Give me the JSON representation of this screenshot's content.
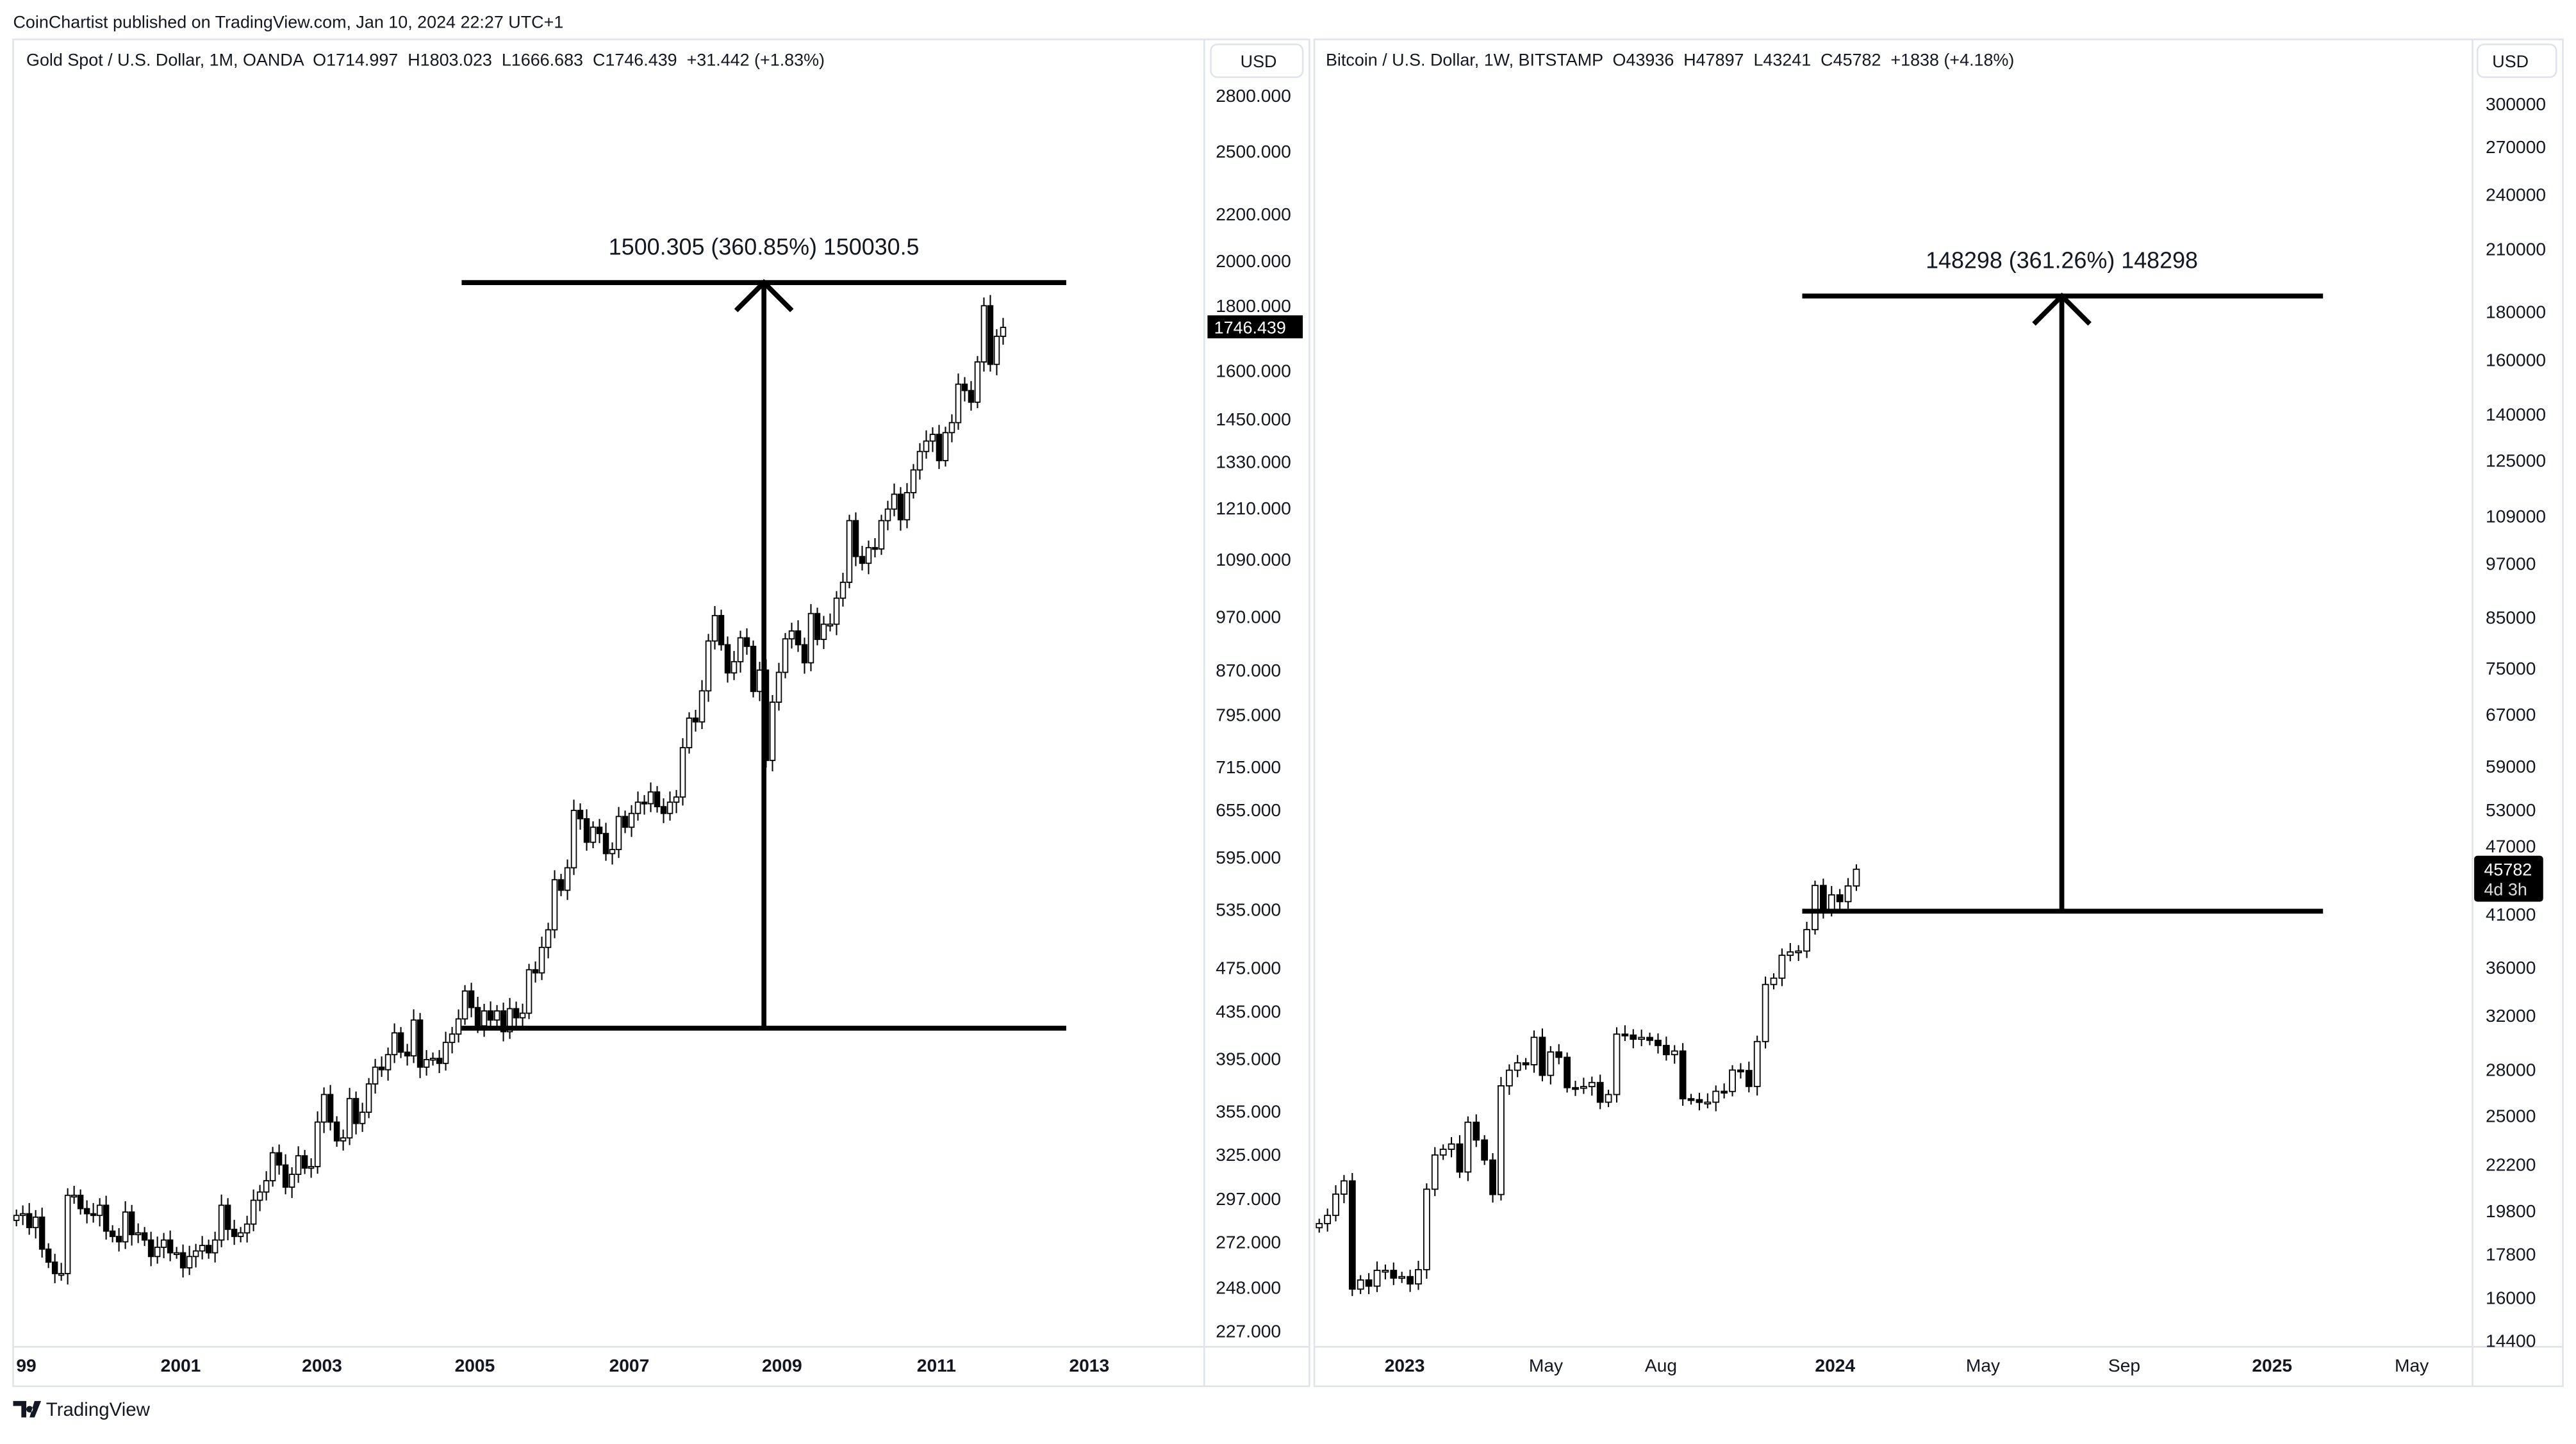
{
  "publisher_line": "CoinChartist published on TradingView.com, Jan 10, 2024 22:27 UTC+1",
  "footer": {
    "logo_text": "TradingView"
  },
  "colors": {
    "up_fill": "#ffffff",
    "down_fill": "#000000",
    "candle_border": "#000000",
    "grid_border": "#e0e3eb",
    "price_tag_bg": "#000000"
  },
  "chart_data": [
    {
      "type": "candlestick",
      "legend": "Gold Spot / U.S. Dollar, 1M, OANDA  O1714.997  H1803.023  L1666.683  C1746.439  +31.442 (+1.83%)",
      "currency_button": "USD",
      "scale": "log",
      "current_price_tag": "1746.439",
      "y_ticks": [
        "2800.000",
        "2500.000",
        "2200.000",
        "2000.000",
        "1800.000",
        "1600.000",
        "1450.000",
        "1330.000",
        "1210.000",
        "1090.000",
        "970.000",
        "870.000",
        "795.000",
        "715.000",
        "655.000",
        "595.000",
        "535.000",
        "475.000",
        "435.000",
        "395.000",
        "355.000",
        "325.000",
        "297.000",
        "272.000",
        "248.000",
        "227.000"
      ],
      "x_ticks": [
        "99",
        "2001",
        "2003",
        "2005",
        "2007",
        "2009",
        "2011",
        "2013"
      ],
      "start": "1999-01",
      "interval": "monthly",
      "closes": [
        287,
        288,
        280,
        286,
        268,
        261,
        255,
        255,
        299,
        299,
        291,
        288,
        287,
        293,
        278,
        275,
        272,
        289,
        276,
        277,
        273,
        264,
        269,
        273,
        266,
        266,
        258,
        264,
        267,
        270,
        266,
        273,
        293,
        279,
        275,
        277,
        282,
        296,
        301,
        308,
        326,
        318,
        304,
        312,
        324,
        316,
        317,
        347,
        367,
        347,
        334,
        336,
        364,
        346,
        354,
        375,
        388,
        386,
        398,
        416,
        400,
        397,
        427,
        388,
        394,
        395,
        391,
        408,
        415,
        428,
        453,
        438,
        422,
        435,
        427,
        435,
        417,
        437,
        429,
        433,
        473,
        470,
        495,
        513,
        568,
        556,
        582,
        654,
        643,
        613,
        632,
        624,
        599,
        604,
        646,
        632,
        650,
        665,
        663,
        679,
        659,
        650,
        665,
        672,
        743,
        789,
        783,
        834,
        923,
        972,
        916,
        865,
        885,
        929,
        913,
        833,
        870,
        724,
        815,
        866,
        927,
        942,
        916,
        883,
        976,
        926,
        955,
        955,
        1007,
        1040,
        1179,
        1096,
        1081,
        1116,
        1113,
        1179,
        1207,
        1244,
        1181,
        1248,
        1307,
        1357,
        1386,
        1405,
        1332,
        1410,
        1439,
        1556,
        1536,
        1500,
        1628,
        1825,
        1620,
        1715,
        1746.439
      ],
      "measure": {
        "label": "1500.305 (360.85%) 150030.5",
        "from_price": 420,
        "to_price": 1913
      }
    },
    {
      "type": "candlestick",
      "legend": "Bitcoin / U.S. Dollar, 1W, BITSTAMP  O43936  H47897  L43241  C45782  +1838 (+4.18%)",
      "currency_button": "USD",
      "scale": "log",
      "current_price_tag": "45782",
      "countdown": "4d 3h",
      "y_ticks": [
        "300000",
        "270000",
        "240000",
        "210000",
        "180000",
        "160000",
        "140000",
        "125000",
        "109000",
        "97000",
        "85000",
        "75000",
        "67000",
        "59000",
        "53000",
        "47000",
        "41000",
        "36000",
        "32000",
        "28000",
        "25000",
        "22200",
        "19800",
        "17800",
        "16000",
        "14400"
      ],
      "x_ticks": [
        "2023",
        "May",
        "Aug",
        "2024",
        "May",
        "Sep",
        "2025",
        "May"
      ],
      "start": "2022-10-10",
      "interval": "weekly",
      "closes": [
        19180,
        19570,
        20620,
        21300,
        16330,
        16700,
        16450,
        17100,
        17100,
        16780,
        16840,
        16540,
        17130,
        20870,
        22700,
        23020,
        23320,
        21770,
        24600,
        23550,
        22420,
        20600,
        26900,
        27950,
        28460,
        28330,
        30300,
        27600,
        29230,
        28850,
        26780,
        26760,
        26850,
        27120,
        25840,
        26330,
        30540,
        30470,
        30160,
        30290,
        30080,
        29700,
        29040,
        29300,
        26060,
        26000,
        25830,
        25840,
        26540,
        26530,
        27960,
        27930,
        26860,
        29990,
        34500,
        35040,
        37060,
        37370,
        37450,
        39470,
        43990,
        41370,
        42990,
        42280,
        43940,
        45782
      ],
      "measure": {
        "label": "148298 (361.26%) 148298",
        "from_price": 41300,
        "to_price": 187000
      }
    }
  ]
}
